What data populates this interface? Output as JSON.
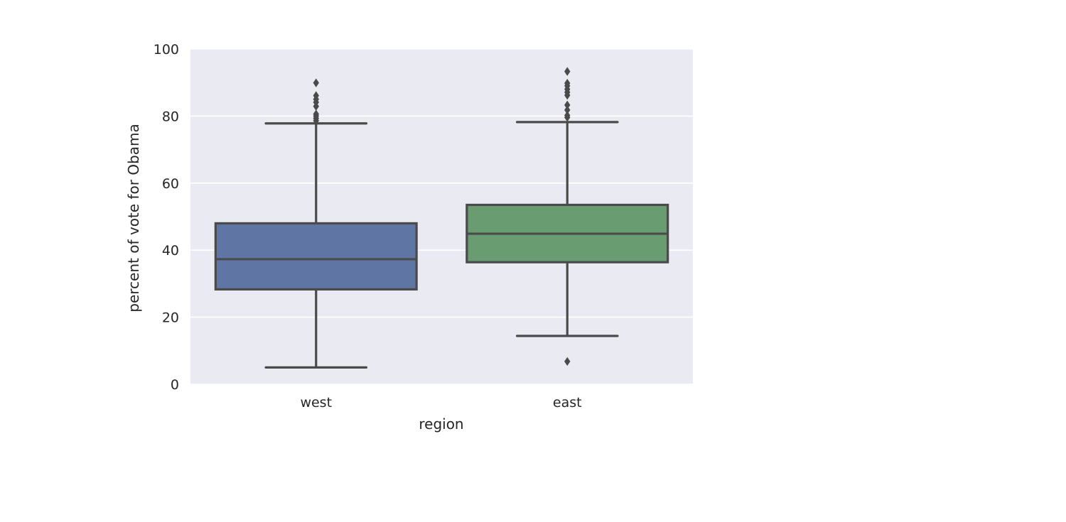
{
  "chart_data": {
    "type": "box",
    "xlabel": "region",
    "ylabel": "percent of vote for Obama",
    "categories": [
      "west",
      "east"
    ],
    "ylim": [
      0,
      100
    ],
    "yticks": [
      "0",
      "20",
      "40",
      "60",
      "80",
      "100"
    ],
    "grid": true,
    "colors": {
      "west": "#5F75A4",
      "east": "#6A9C71",
      "plot_background": "#EAEAF2",
      "grid": "#FFFFFF",
      "box_edge": "#4A4A4A"
    },
    "boxes": [
      {
        "category": "west",
        "whisker_low": 5,
        "q1": 28.3,
        "median": 37.3,
        "q3": 48,
        "whisker_high": 77.8,
        "outliers": [
          78.6,
          79.3,
          80,
          80.6,
          82.9,
          84.1,
          85,
          86.1,
          89.9
        ]
      },
      {
        "category": "east",
        "whisker_low": 14.4,
        "q1": 36.4,
        "median": 44.9,
        "q3": 53.5,
        "whisker_high": 78.2,
        "outliers": [
          6.8,
          79.6,
          80.2,
          81.8,
          83.3,
          86.2,
          87.1,
          88,
          89,
          89.8,
          93.3
        ]
      }
    ]
  }
}
